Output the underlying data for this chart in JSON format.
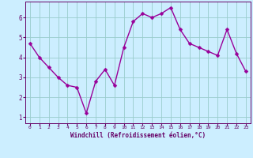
{
  "x": [
    0,
    1,
    2,
    3,
    4,
    5,
    6,
    7,
    8,
    9,
    10,
    11,
    12,
    13,
    14,
    15,
    16,
    17,
    18,
    19,
    20,
    21,
    22,
    23
  ],
  "y": [
    4.7,
    4.0,
    3.5,
    3.0,
    2.6,
    2.5,
    1.2,
    2.8,
    3.4,
    2.6,
    4.5,
    5.8,
    6.2,
    6.0,
    6.2,
    6.5,
    5.4,
    4.7,
    4.5,
    4.3,
    4.1,
    5.4,
    4.2,
    3.3
  ],
  "line_color": "#990099",
  "marker_color": "#990099",
  "bg_color": "#cceeff",
  "grid_color": "#99cccc",
  "xlabel": "Windchill (Refroidissement éolien,°C)",
  "xlabel_color": "#660066",
  "ylim": [
    0.7,
    6.8
  ],
  "xlim": [
    -0.5,
    23.5
  ],
  "yticks": [
    1,
    2,
    3,
    4,
    5,
    6
  ],
  "xticks": [
    0,
    1,
    2,
    3,
    4,
    5,
    6,
    7,
    8,
    9,
    10,
    11,
    12,
    13,
    14,
    15,
    16,
    17,
    18,
    19,
    20,
    21,
    22,
    23
  ],
  "tick_color": "#660066",
  "axis_color": "#660066",
  "marker_size": 2.5,
  "line_width": 1.0
}
